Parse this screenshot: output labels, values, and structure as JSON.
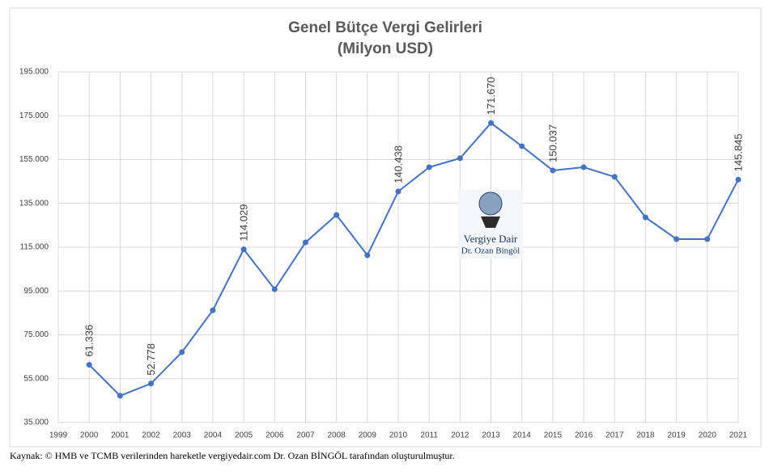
{
  "chart_data": {
    "type": "line",
    "title": "Genel Bütçe Vergi Gelirleri",
    "subtitle": "(Milyon USD)",
    "x": [
      2000,
      2001,
      2002,
      2003,
      2004,
      2005,
      2006,
      2007,
      2008,
      2009,
      2010,
      2011,
      2012,
      2013,
      2014,
      2015,
      2016,
      2017,
      2018,
      2019,
      2020,
      2021
    ],
    "series": [
      {
        "color": "#4472c4",
        "values": [
          61336,
          47200,
          52778,
          67100,
          86200,
          114029,
          95800,
          117200,
          129700,
          111300,
          140438,
          151500,
          155600,
          171670,
          161100,
          150037,
          151500,
          147100,
          128600,
          118700,
          118700,
          145845
        ],
        "value_labels": [
          "61.336",
          null,
          "52.778",
          null,
          null,
          "114.029",
          null,
          null,
          null,
          null,
          "140.438",
          null,
          null,
          "171.670",
          null,
          "150.037",
          null,
          null,
          null,
          null,
          null,
          "145.845"
        ]
      }
    ],
    "xlim": [
      1999,
      2021
    ],
    "xticks": [
      1999,
      2000,
      2001,
      2002,
      2003,
      2004,
      2005,
      2006,
      2007,
      2008,
      2009,
      2010,
      2011,
      2012,
      2013,
      2014,
      2015,
      2016,
      2017,
      2018,
      2019,
      2020,
      2021
    ],
    "ylim": [
      35000,
      195000
    ],
    "yticks": [
      {
        "value": 35000,
        "label": "35.000"
      },
      {
        "value": 55000,
        "label": "55.000"
      },
      {
        "value": 75000,
        "label": "75.000"
      },
      {
        "value": 95000,
        "label": "95.000"
      },
      {
        "value": 115000,
        "label": "115.000"
      },
      {
        "value": 135000,
        "label": "135.000"
      },
      {
        "value": 155000,
        "label": "155.000"
      },
      {
        "value": 175000,
        "label": "175.000"
      },
      {
        "value": 195000,
        "label": "195.000"
      }
    ],
    "grid": true,
    "watermark": [
      "Vergiye Dair",
      "Dr. Ozan Bingöl"
    ],
    "source": "Kaynak: © HMB ve TCMB verilerinden hareketle vergiyedair.com Dr. Ozan BİNGÖL tarafından oluşturulmuştur."
  }
}
